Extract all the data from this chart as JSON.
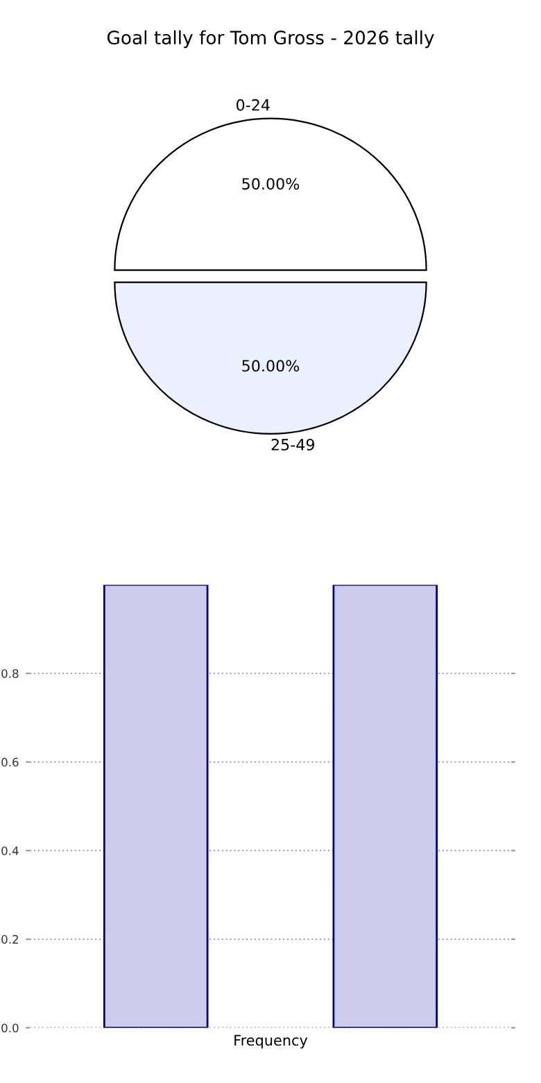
{
  "chart_data": [
    {
      "type": "pie",
      "title": "Goal tally for Tom Gross - 2026 tally",
      "categories": [
        "0-24",
        "25-49"
      ],
      "values": [
        50,
        50
      ],
      "colors": [
        "#ffffff",
        "#eaf0fd"
      ],
      "value_labels": [
        "50.00%",
        "50.00%"
      ]
    },
    {
      "type": "bar",
      "categories": [
        null,
        null
      ],
      "values": [
        1,
        1
      ],
      "color": "#ccccea",
      "xlabel": "Frequency",
      "ylim": [
        0,
        1.0
      ],
      "yticks": [
        {
          "value": 0,
          "label": "0.0"
        },
        0.2,
        0.4,
        0.6,
        0.8
      ],
      "grid": "y"
    }
  ]
}
